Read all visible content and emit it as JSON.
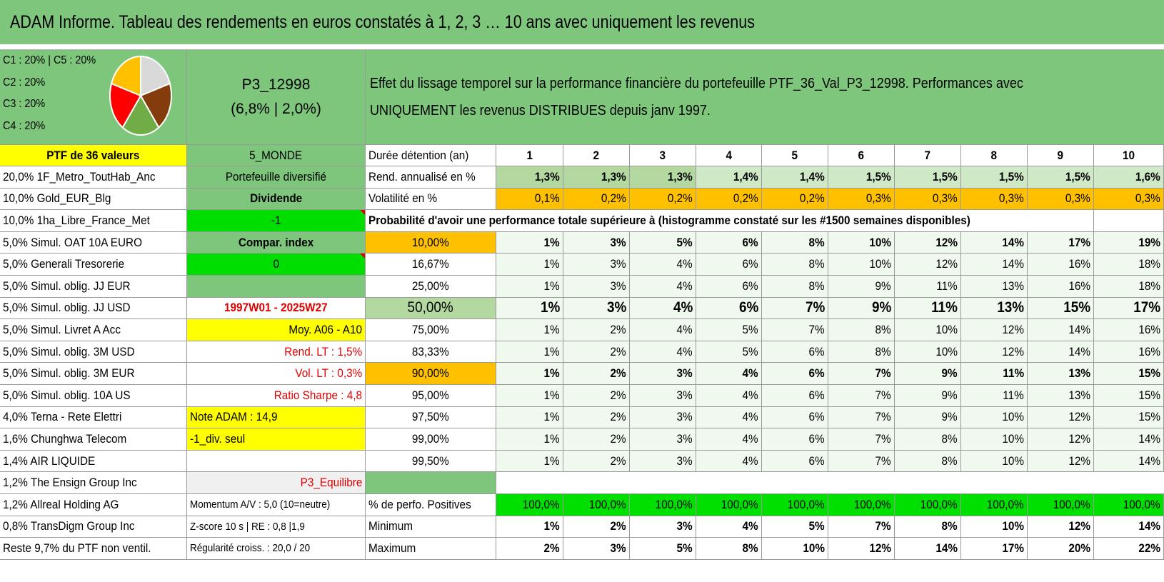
{
  "title": "ADAM Informe. Tableau des rendements en euros constatés à 1, 2, 3 … 10 ans avec uniquement les revenus",
  "allocation_legend": [
    "C1 : 20% | C5 : 20%",
    "C2 : 20%",
    "C3 : 20%",
    "C4 : 20%"
  ],
  "pie": {
    "slices": [
      {
        "value": 20,
        "color": "#d9d9d9"
      },
      {
        "value": 20,
        "color": "#843c0c"
      },
      {
        "value": 20,
        "color": "#70ad47"
      },
      {
        "value": 20,
        "color": "#ff0000"
      },
      {
        "value": 20,
        "color": "#ffc000"
      }
    ]
  },
  "portfolio": {
    "code": "P3_12998",
    "stats": "(6,8% | 2,0%)"
  },
  "description": "Effet du lissage temporel sur la performance financière du portefeuille PTF_36_Val_P3_12998. Performances avec UNIQUEMENT les revenus DISTRIBUES depuis janv 1997.",
  "holdings_header": "PTF de 36 valeurs",
  "holdings": [
    "20,0% 1F_Metro_ToutHab_Anc",
    "10,0% Gold_EUR_Blg",
    "10,0% 1ha_Libre_France_Met",
    "5,0% Simul. OAT 10A EURO",
    "5,0% Generali Tresorerie",
    "5,0% Simul. oblig. JJ EUR",
    "5,0% Simul. oblig. JJ USD",
    "5,0% Simul. Livret A Acc",
    "5,0% Simul. oblig. 3M USD",
    "5,0% Simul. oblig. 3M EUR",
    "5,0% Simul. oblig. 10A US",
    "4,0% Terna - Rete Elettri",
    "1,6% Chunghwa Telecom",
    "1,4% AIR LIQUIDE",
    "1,2% The Ensign Group Inc",
    "1,2% Allreal Holding AG",
    "0,8% TransDigm Group Inc",
    "Reste 9,7% du PTF non ventil."
  ],
  "info": {
    "zone": "5_MONDE",
    "type": "Portefeuille diversifié",
    "mode": "Dividende",
    "mode_value": "-1",
    "compar_label": "Compar. index",
    "compar_value": "0",
    "blank": "",
    "period": "1997W01 - 2025W27",
    "average": "Moy. A06 - A10",
    "rend_lt": "Rend. LT : 1,5%",
    "vol_lt": "Vol. LT : 0,3%",
    "sharpe": "Ratio Sharpe : 4,8",
    "note": "Note ADAM : 14,9",
    "div_only": "-1_div. seul",
    "empty": "",
    "profile": "P3_Equilibre",
    "momentum": "Momentum A/V : 5,0 (10=neutre)",
    "zscore": "Z-score 10 s | RE : 0,8 |1,9",
    "regularity": "Régularité croiss. : 20,0 / 20"
  },
  "table": {
    "duration_label": "Durée détention (an)",
    "years": [
      "1",
      "2",
      "3",
      "4",
      "5",
      "6",
      "7",
      "8",
      "9",
      "10"
    ],
    "rend_label": "Rend. annualisé en %",
    "rend": [
      "1,3%",
      "1,3%",
      "1,3%",
      "1,4%",
      "1,4%",
      "1,5%",
      "1,5%",
      "1,5%",
      "1,5%",
      "1,6%"
    ],
    "vol_label": "Volatilité en %",
    "vol": [
      "0,1%",
      "0,2%",
      "0,2%",
      "0,2%",
      "0,2%",
      "0,3%",
      "0,3%",
      "0,3%",
      "0,3%",
      "0,3%"
    ],
    "prob_title": "Probabilité d'avoir une performance totale supérieure à (histogramme constaté sur les #1500 semaines disponibles)",
    "prob_rows": [
      {
        "p": "10,00%",
        "v": [
          "1%",
          "3%",
          "5%",
          "6%",
          "8%",
          "10%",
          "12%",
          "14%",
          "17%",
          "19%"
        ]
      },
      {
        "p": "16,67%",
        "v": [
          "1%",
          "3%",
          "4%",
          "6%",
          "8%",
          "10%",
          "12%",
          "14%",
          "16%",
          "18%"
        ]
      },
      {
        "p": "25,00%",
        "v": [
          "1%",
          "3%",
          "4%",
          "6%",
          "8%",
          "9%",
          "11%",
          "13%",
          "16%",
          "18%"
        ]
      },
      {
        "p": "50,00%",
        "v": [
          "1%",
          "3%",
          "4%",
          "6%",
          "7%",
          "9%",
          "11%",
          "13%",
          "15%",
          "17%"
        ]
      },
      {
        "p": "75,00%",
        "v": [
          "1%",
          "2%",
          "4%",
          "5%",
          "7%",
          "8%",
          "10%",
          "12%",
          "14%",
          "16%"
        ]
      },
      {
        "p": "83,33%",
        "v": [
          "1%",
          "2%",
          "4%",
          "5%",
          "6%",
          "8%",
          "10%",
          "12%",
          "14%",
          "16%"
        ]
      },
      {
        "p": "90,00%",
        "v": [
          "1%",
          "2%",
          "3%",
          "4%",
          "6%",
          "7%",
          "9%",
          "11%",
          "13%",
          "15%"
        ]
      },
      {
        "p": "95,00%",
        "v": [
          "1%",
          "2%",
          "3%",
          "4%",
          "6%",
          "7%",
          "9%",
          "11%",
          "13%",
          "15%"
        ]
      },
      {
        "p": "97,50%",
        "v": [
          "1%",
          "2%",
          "3%",
          "4%",
          "6%",
          "7%",
          "9%",
          "10%",
          "12%",
          "15%"
        ]
      },
      {
        "p": "99,00%",
        "v": [
          "1%",
          "2%",
          "3%",
          "4%",
          "6%",
          "7%",
          "8%",
          "10%",
          "12%",
          "14%"
        ]
      },
      {
        "p": "99,50%",
        "v": [
          "1%",
          "2%",
          "3%",
          "4%",
          "6%",
          "7%",
          "8%",
          "10%",
          "12%",
          "14%"
        ]
      }
    ],
    "pos_label": "% de perfo. Positives",
    "pos": [
      "100,0%",
      "100,0%",
      "100,0%",
      "100,0%",
      "100,0%",
      "100,0%",
      "100,0%",
      "100,0%",
      "100,0%",
      "100,0%"
    ],
    "min_label": "Minimum",
    "min": [
      "1%",
      "2%",
      "3%",
      "4%",
      "5%",
      "7%",
      "8%",
      "10%",
      "12%",
      "14%"
    ],
    "max_label": "Maximum",
    "max": [
      "2%",
      "3%",
      "5%",
      "8%",
      "10%",
      "12%",
      "14%",
      "17%",
      "20%",
      "22%"
    ]
  }
}
